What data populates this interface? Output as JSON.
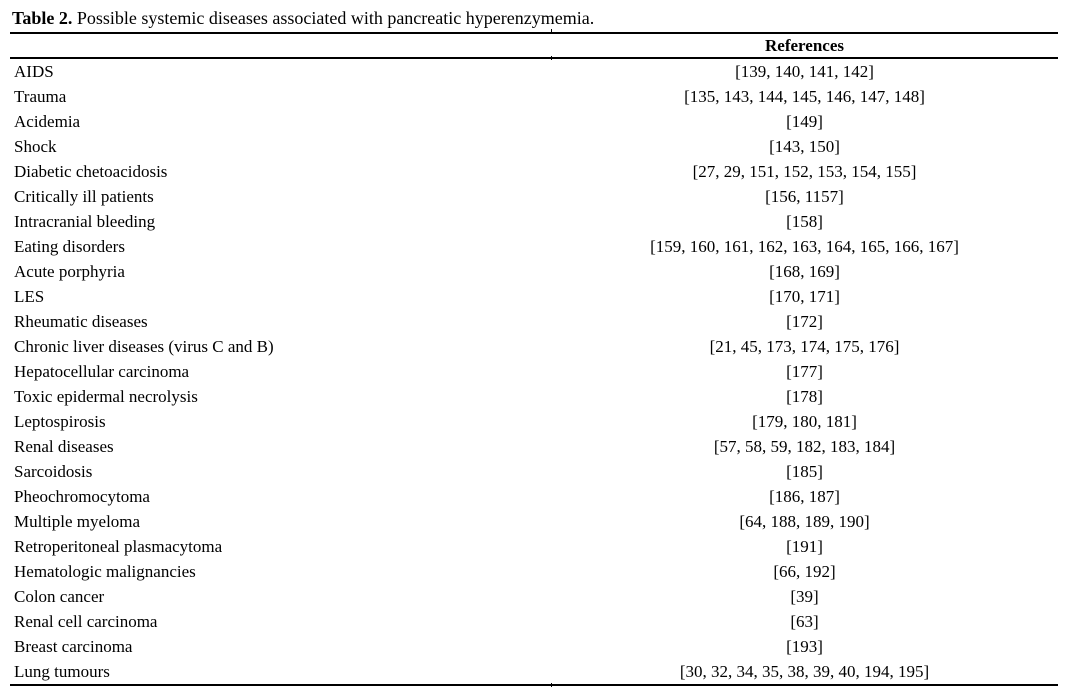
{
  "theme": {
    "background_color": "#ffffff",
    "text_color": "#000000",
    "rule_color": "#000000"
  },
  "caption": {
    "label": "Table 2.",
    "text": " Possible systemic diseases associated with pancreatic hyperenzymemia."
  },
  "table": {
    "header": {
      "disease": "",
      "references": "References"
    },
    "rows": [
      {
        "disease": "AIDS",
        "references": "[139, 140, 141, 142]"
      },
      {
        "disease": "Trauma",
        "references": "[135, 143, 144, 145, 146, 147, 148]"
      },
      {
        "disease": "Acidemia",
        "references": "[149]"
      },
      {
        "disease": "Shock",
        "references": "[143, 150]"
      },
      {
        "disease": "Diabetic chetoacidosis",
        "references": "[27, 29, 151, 152, 153, 154, 155]"
      },
      {
        "disease": "Critically ill patients",
        "references": "[156, 1157]"
      },
      {
        "disease": "Intracranial bleeding",
        "references": "[158]"
      },
      {
        "disease": "Eating disorders",
        "references": "[159, 160, 161, 162, 163, 164, 165, 166, 167]"
      },
      {
        "disease": "Acute porphyria",
        "references": "[168, 169]"
      },
      {
        "disease": "LES",
        "references": "[170, 171]"
      },
      {
        "disease": "Rheumatic diseases",
        "references": "[172]"
      },
      {
        "disease": "Chronic liver diseases (virus C and B)",
        "references": "[21, 45, 173, 174, 175, 176]"
      },
      {
        "disease": "Hepatocellular carcinoma",
        "references": "[177]"
      },
      {
        "disease": "Toxic epidermal necrolysis",
        "references": "[178]"
      },
      {
        "disease": "Leptospirosis",
        "references": "[179, 180, 181]"
      },
      {
        "disease": "Renal diseases",
        "references": "[57, 58, 59, 182, 183, 184]"
      },
      {
        "disease": "Sarcoidosis",
        "references": "[185]"
      },
      {
        "disease": "Pheochromocytoma",
        "references": "[186, 187]"
      },
      {
        "disease": "Multiple myeloma",
        "references": "[64, 188, 189, 190]"
      },
      {
        "disease": "Retroperitoneal plasmacytoma",
        "references": "[191]"
      },
      {
        "disease": "Hematologic malignancies",
        "references": "[66, 192]"
      },
      {
        "disease": "Colon cancer",
        "references": "[39]"
      },
      {
        "disease": "Renal cell carcinoma",
        "references": "[63]"
      },
      {
        "disease": "Breast carcinoma",
        "references": "[193]"
      },
      {
        "disease": "Lung tumours",
        "references": "[30, 32, 34, 35, 38, 39, 40, 194, 195]"
      }
    ]
  }
}
